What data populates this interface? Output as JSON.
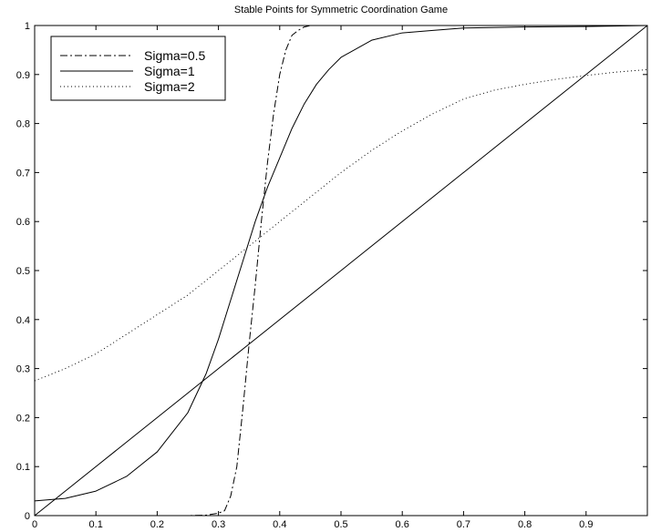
{
  "chart_data": {
    "type": "line",
    "title": "Stable Points for Symmetric Coordination Game",
    "xlabel": "",
    "ylabel": "",
    "xlim": [
      0,
      1
    ],
    "ylim": [
      0,
      1
    ],
    "x_ticks": [
      "0",
      "0.1",
      "0.2",
      "0.3",
      "0.4",
      "0.5",
      "0.6",
      "0.7",
      "0.8",
      "0.9"
    ],
    "y_ticks": [
      "0",
      "0.1",
      "0.2",
      "0.3",
      "0.4",
      "0.5",
      "0.6",
      "0.7",
      "0.8",
      "0.9",
      "1"
    ],
    "grid": false,
    "legend_position": "top-left",
    "series": [
      {
        "name": "Sigma=0.5",
        "style": "dashdot",
        "x": [
          0,
          0.25,
          0.28,
          0.3,
          0.31,
          0.32,
          0.33,
          0.34,
          0.35,
          0.36,
          0.37,
          0.38,
          0.39,
          0.4,
          0.41,
          0.42,
          0.43,
          0.44,
          0.45,
          0.47,
          0.5,
          1.0
        ],
        "y": [
          0,
          0,
          0.001,
          0.005,
          0.01,
          0.04,
          0.1,
          0.22,
          0.35,
          0.47,
          0.6,
          0.72,
          0.82,
          0.9,
          0.95,
          0.98,
          0.99,
          0.997,
          1.0,
          1.0,
          1.0,
          1.0
        ]
      },
      {
        "name": "Sigma=1",
        "style": "solid",
        "x": [
          0,
          0.05,
          0.1,
          0.15,
          0.2,
          0.25,
          0.28,
          0.3,
          0.32,
          0.34,
          0.36,
          0.38,
          0.4,
          0.42,
          0.44,
          0.46,
          0.48,
          0.5,
          0.55,
          0.6,
          0.65,
          0.7,
          0.8,
          0.9,
          1.0
        ],
        "y": [
          0.03,
          0.035,
          0.05,
          0.08,
          0.13,
          0.21,
          0.29,
          0.36,
          0.44,
          0.52,
          0.6,
          0.67,
          0.73,
          0.79,
          0.84,
          0.88,
          0.91,
          0.935,
          0.97,
          0.985,
          0.99,
          0.995,
          0.997,
          0.998,
          1.0
        ]
      },
      {
        "name": "Sigma=2",
        "style": "dotted",
        "x": [
          0,
          0.05,
          0.1,
          0.15,
          0.2,
          0.25,
          0.3,
          0.35,
          0.4,
          0.45,
          0.5,
          0.55,
          0.6,
          0.65,
          0.7,
          0.75,
          0.8,
          0.85,
          0.9,
          0.95,
          1.0
        ],
        "y": [
          0.275,
          0.3,
          0.33,
          0.37,
          0.41,
          0.45,
          0.5,
          0.55,
          0.6,
          0.65,
          0.7,
          0.745,
          0.785,
          0.82,
          0.85,
          0.868,
          0.88,
          0.89,
          0.898,
          0.905,
          0.91
        ]
      },
      {
        "name": "",
        "style": "solid",
        "x": [
          0,
          1
        ],
        "y": [
          0,
          1
        ]
      }
    ]
  }
}
